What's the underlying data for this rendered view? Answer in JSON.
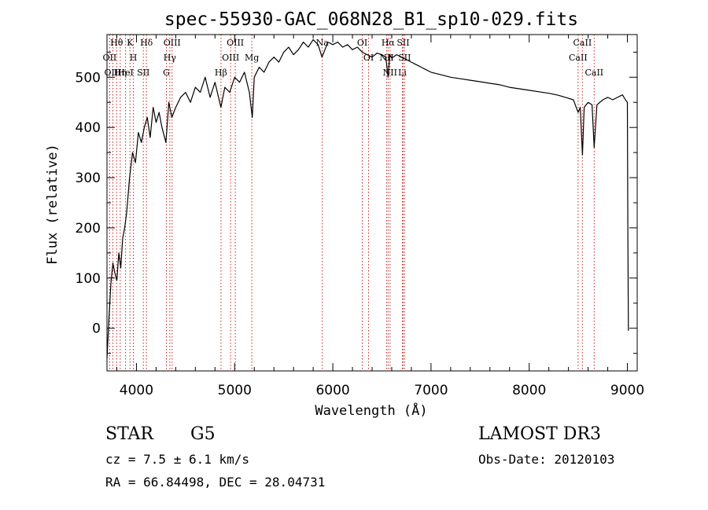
{
  "chart_data": {
    "type": "line",
    "title": "spec-55930-GAC_068N28_B1_sp10-029.fits",
    "xlabel": "Wavelength (Å)",
    "ylabel": "Flux (relative)",
    "xlim": [
      3700,
      9100
    ],
    "ylim": [
      -85,
      585
    ],
    "xticks": [
      4000,
      5000,
      6000,
      7000,
      8000,
      9000
    ],
    "yticks": [
      0,
      100,
      200,
      300,
      400,
      500
    ],
    "grid": false,
    "series": [
      {
        "name": "flux",
        "x": [
          3700,
          3720,
          3740,
          3760,
          3780,
          3800,
          3820,
          3840,
          3860,
          3880,
          3900,
          3930,
          3960,
          3990,
          4020,
          4050,
          4080,
          4110,
          4140,
          4170,
          4200,
          4230,
          4260,
          4300,
          4330,
          4360,
          4400,
          4450,
          4500,
          4550,
          4600,
          4650,
          4700,
          4750,
          4800,
          4860,
          4900,
          4950,
          5000,
          5050,
          5100,
          5150,
          5180,
          5200,
          5250,
          5300,
          5350,
          5400,
          5450,
          5500,
          5550,
          5600,
          5650,
          5700,
          5750,
          5800,
          5850,
          5890,
          5920,
          5950,
          6000,
          6050,
          6100,
          6150,
          6200,
          6250,
          6300,
          6350,
          6400,
          6450,
          6500,
          6540,
          6563,
          6580,
          6600,
          6650,
          6700,
          6750,
          6800,
          6850,
          6900,
          6950,
          7000,
          7100,
          7200,
          7300,
          7400,
          7500,
          7600,
          7700,
          7800,
          7900,
          8000,
          8100,
          8200,
          8300,
          8400,
          8450,
          8498,
          8520,
          8542,
          8560,
          8600,
          8640,
          8662,
          8690,
          8750,
          8800,
          8850,
          8900,
          8950,
          8980,
          9000,
          9005,
          9010
        ],
        "values": [
          -60,
          20,
          90,
          130,
          110,
          95,
          150,
          120,
          180,
          200,
          230,
          300,
          350,
          330,
          390,
          370,
          400,
          420,
          380,
          440,
          410,
          430,
          400,
          370,
          450,
          420,
          440,
          460,
          470,
          450,
          480,
          470,
          500,
          460,
          490,
          440,
          480,
          470,
          500,
          490,
          510,
          470,
          420,
          500,
          520,
          510,
          530,
          540,
          530,
          550,
          560,
          545,
          555,
          570,
          560,
          575,
          565,
          540,
          555,
          570,
          565,
          570,
          560,
          565,
          555,
          560,
          550,
          545,
          540,
          548,
          545,
          540,
          500,
          545,
          538,
          545,
          540,
          535,
          530,
          525,
          520,
          515,
          510,
          505,
          500,
          497,
          494,
          491,
          488,
          485,
          480,
          477,
          474,
          471,
          468,
          464,
          458,
          455,
          430,
          440,
          345,
          440,
          450,
          445,
          360,
          445,
          455,
          460,
          455,
          460,
          465,
          455,
          450,
          200,
          -5
        ],
        "color": "#000000"
      }
    ],
    "lines": [
      {
        "label": "Hθ",
        "x": 3798,
        "color": "#cc2222"
      },
      {
        "label": "OII",
        "x": 3727,
        "color": "#cc2222"
      },
      {
        "label": "OIII",
        "x": 3760,
        "color": "#cc2222"
      },
      {
        "label": "Hη",
        "x": 3835,
        "color": "#cc2222"
      },
      {
        "label": "K",
        "x": 3934,
        "color": "#cc2222"
      },
      {
        "label": "HeI",
        "x": 3889,
        "color": "#cc2222"
      },
      {
        "label": "H",
        "x": 3969,
        "color": "#cc2222"
      },
      {
        "label": "Hδ",
        "x": 4102,
        "color": "#cc2222"
      },
      {
        "label": "SII",
        "x": 4070,
        "color": "#cc2222"
      },
      {
        "label": "OIII",
        "x": 4363,
        "color": "#cc2222"
      },
      {
        "label": "Hγ",
        "x": 4340,
        "color": "#cc2222"
      },
      {
        "label": "G",
        "x": 4305,
        "color": "#cc2222"
      },
      {
        "label": "OIII",
        "x": 5007,
        "color": "#cc2222"
      },
      {
        "label": "OIII",
        "x": 4959,
        "color": "#cc2222"
      },
      {
        "label": "Hβ",
        "x": 4861,
        "color": "#cc2222"
      },
      {
        "label": "Mg",
        "x": 5175,
        "color": "#cc2222"
      },
      {
        "label": "Na",
        "x": 5893,
        "color": "#cc2222"
      },
      {
        "label": "OI",
        "x": 6300,
        "color": "#cc2222"
      },
      {
        "label": "OI",
        "x": 6364,
        "color": "#cc2222"
      },
      {
        "label": "Hα",
        "x": 6563,
        "color": "#cc2222"
      },
      {
        "label": "NII",
        "x": 6548,
        "color": "#cc2222"
      },
      {
        "label": "NII",
        "x": 6583,
        "color": "#cc2222"
      },
      {
        "label": "SII",
        "x": 6716,
        "color": "#cc2222"
      },
      {
        "label": "SII",
        "x": 6731,
        "color": "#cc2222"
      },
      {
        "label": "Li",
        "x": 6708,
        "color": "#cc2222"
      },
      {
        "label": "CaII",
        "x": 8542,
        "color": "#cc2222"
      },
      {
        "label": "CaII",
        "x": 8498,
        "color": "#cc2222"
      },
      {
        "label": "CaII",
        "x": 8662,
        "color": "#cc2222"
      }
    ]
  },
  "info": {
    "class": "STAR",
    "subclass": "G5",
    "survey": "LAMOST DR3",
    "cz": "cz = 7.5 ± 6.1 km/s",
    "obs_date": "Obs-Date: 20120103",
    "coords": "RA =  66.84498, DEC =  28.04731"
  }
}
